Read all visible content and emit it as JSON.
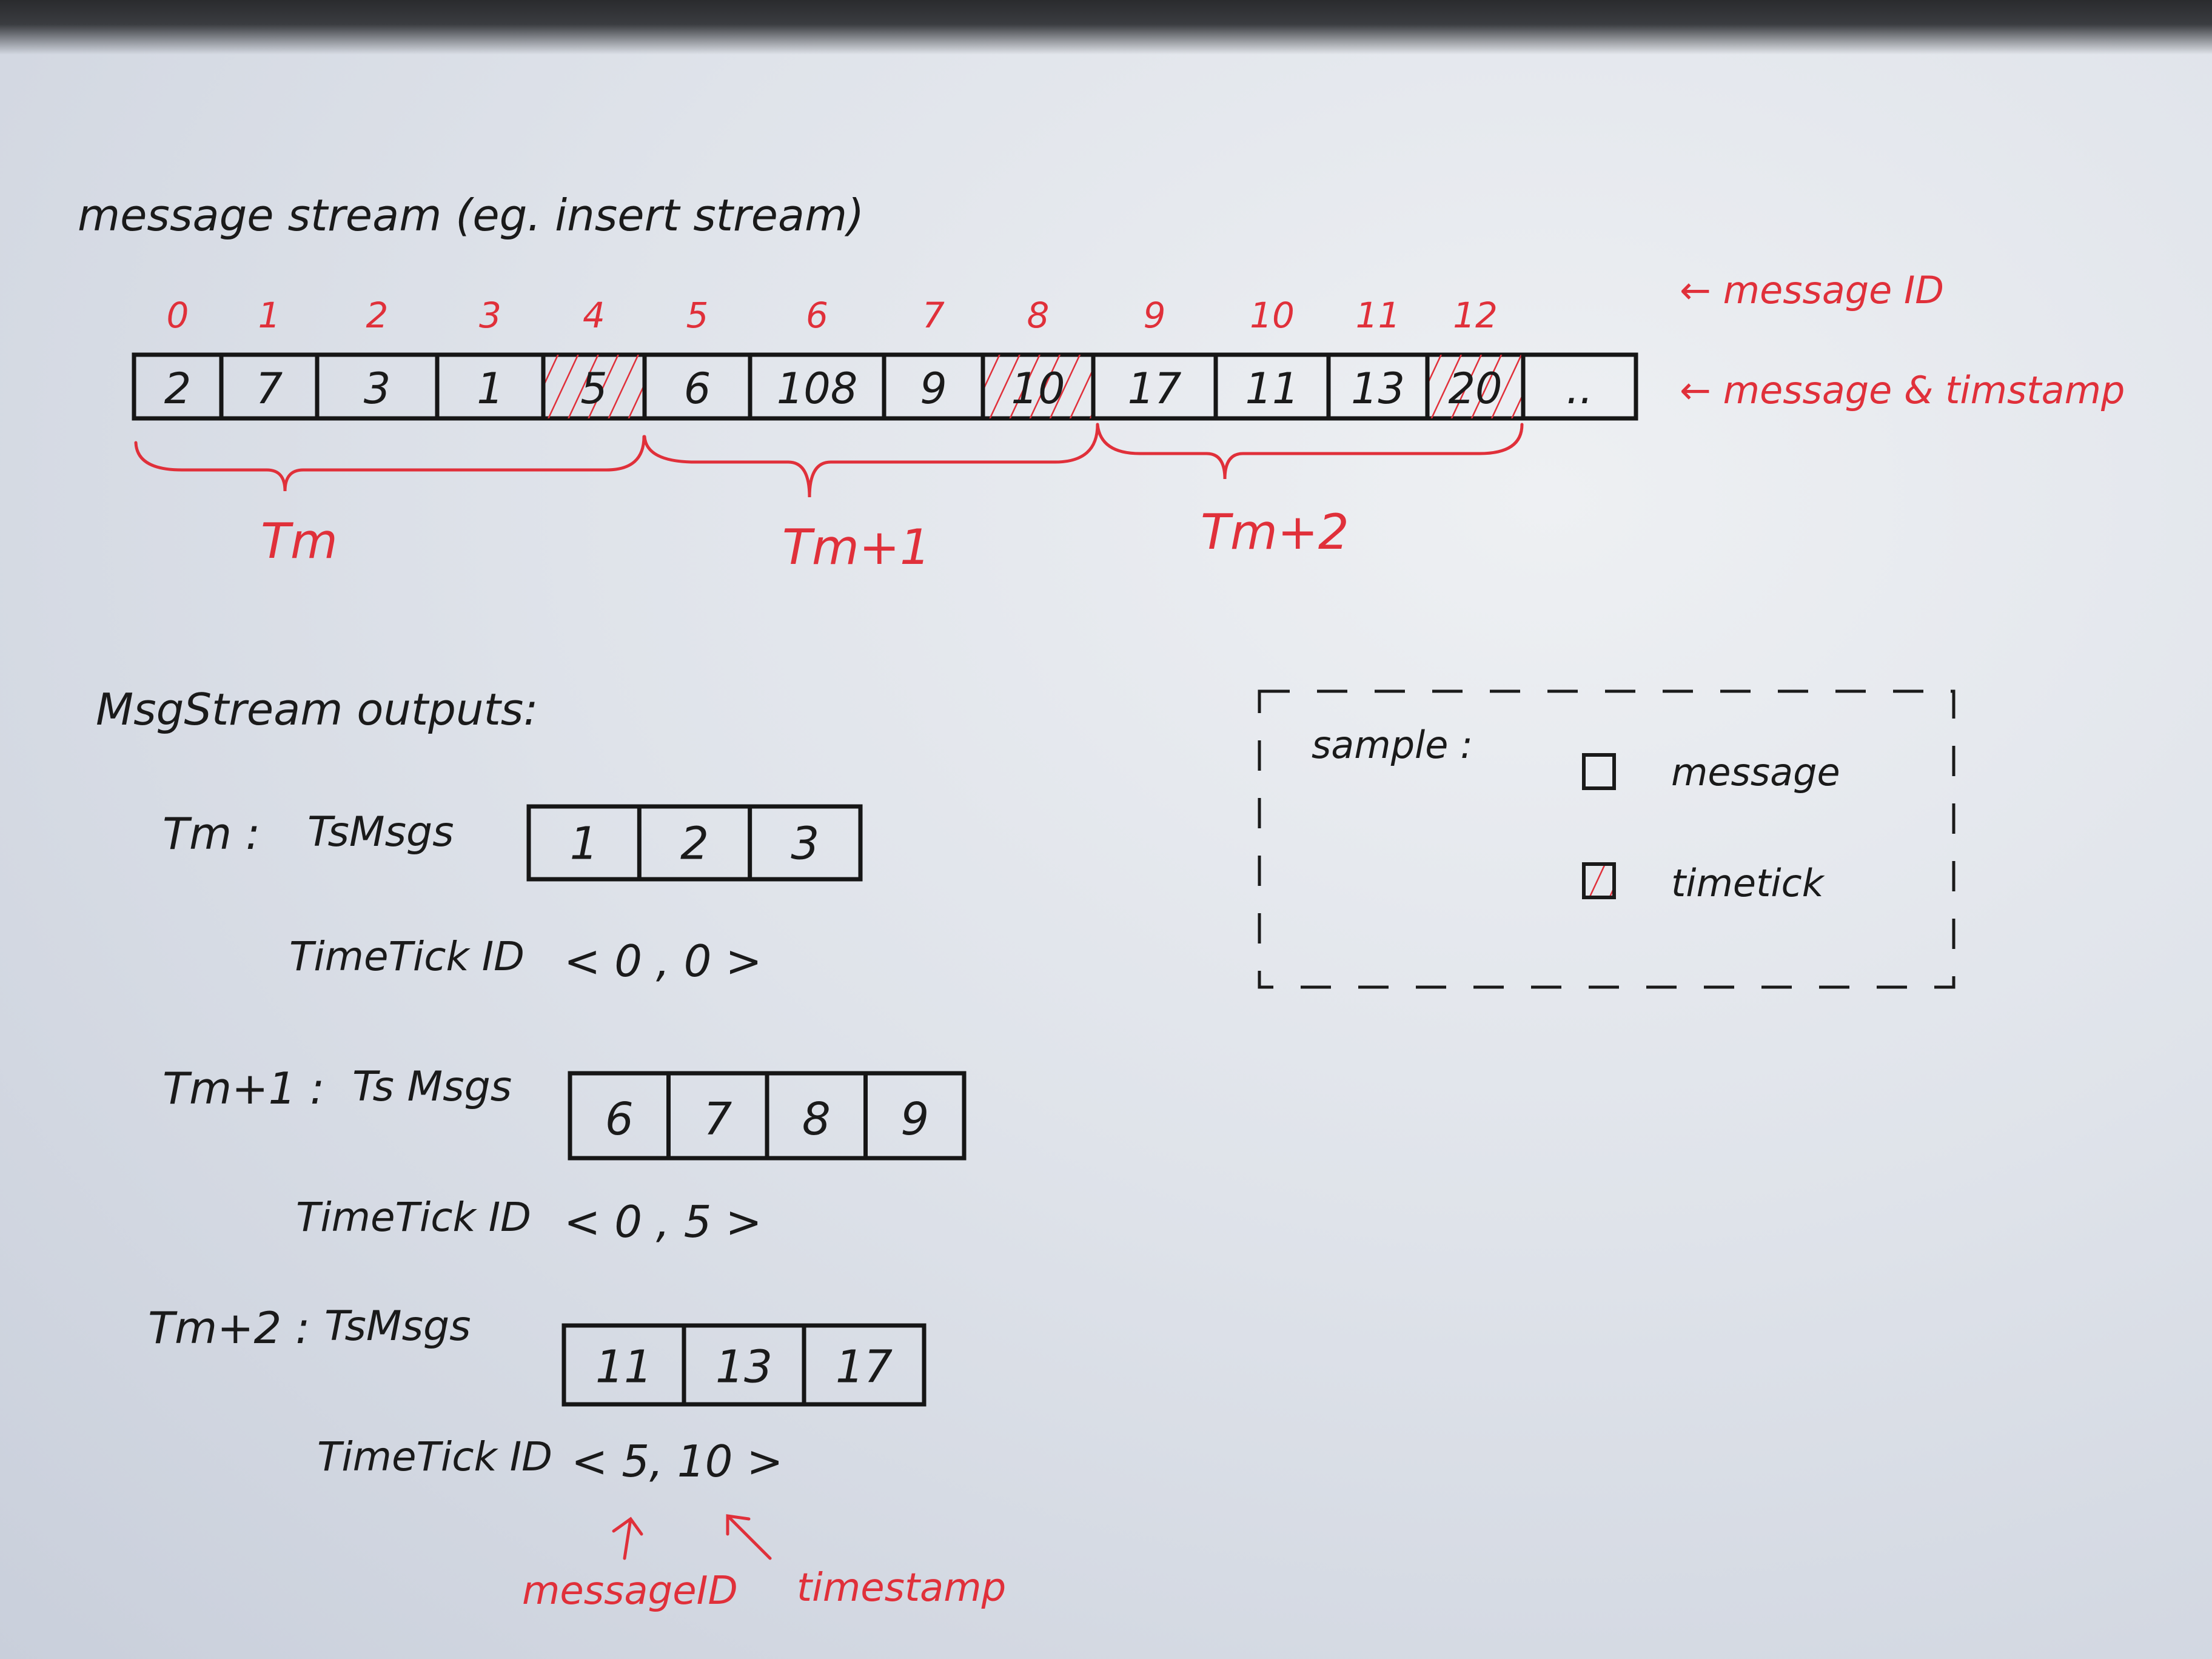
{
  "title": "message stream (eg. insert stream)",
  "annotations": {
    "message_id": "message ID",
    "message_timestamp": "message & timstamp"
  },
  "stream": {
    "message_ids": [
      "0",
      "1",
      "2",
      "3",
      "4",
      "5",
      "6",
      "7",
      "8",
      "9",
      "10",
      "11",
      "12"
    ],
    "timestamps": [
      "2",
      "7",
      "3",
      "1",
      "5",
      "6",
      "108",
      "9",
      "10",
      "17",
      "11",
      "13",
      "20",
      ".."
    ],
    "timetick_indices": [
      4,
      8,
      12
    ]
  },
  "periods": [
    "Tm",
    "Tm+1",
    "Tm+2"
  ],
  "outputs_heading": "MsgStream outputs:",
  "outputs": [
    {
      "period": "Tm :",
      "msgs_label": "TsMsgs",
      "msgs": [
        "1",
        "2",
        "3"
      ],
      "tt_label": "TimeTick ID",
      "tt_value": "< 0 , 0 >"
    },
    {
      "period": "Tm+1 :",
      "msgs_label": "Ts Msgs",
      "msgs": [
        "6",
        "7",
        "8",
        "9"
      ],
      "tt_label": "TimeTick ID",
      "tt_value": "< 0 , 5 >"
    },
    {
      "period": "Tm+2 :",
      "msgs_label": "TsMsgs",
      "msgs": [
        "11",
        "13",
        "17"
      ],
      "tt_label": "TimeTick ID",
      "tt_value": "< 5, 10 >"
    }
  ],
  "pointer_labels": {
    "message_id": "messageID",
    "timestamp": "timestamp"
  },
  "legend": {
    "title": "sample :",
    "message": "message",
    "timetick": "timetick"
  },
  "colors": {
    "ink": "#1a1a1a",
    "red": "#e0303a"
  }
}
